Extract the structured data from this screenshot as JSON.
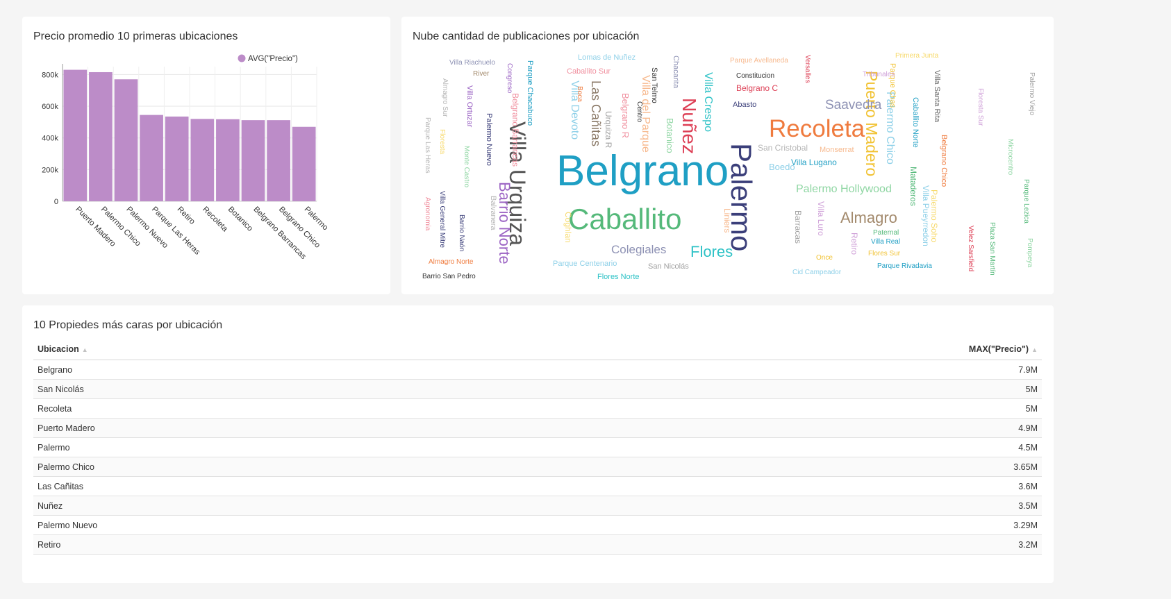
{
  "bar_card": {
    "title": "Precio promedio 10 primeras ubicaciones"
  },
  "cloud_card": {
    "title": "Nube cantidad de publicaciones por ubicación"
  },
  "table_card": {
    "title": "10 Propiedes más caras por ubicación",
    "columns": [
      {
        "label": "Ubicacion"
      },
      {
        "label": "MAX(\"Precio\")"
      }
    ],
    "rows": [
      {
        "ubicacion": "Belgrano",
        "max_precio": "7.9M",
        "value": 7900000
      },
      {
        "ubicacion": "San Nicolás",
        "max_precio": "5M",
        "value": 5000000
      },
      {
        "ubicacion": "Recoleta",
        "max_precio": "5M",
        "value": 5000000
      },
      {
        "ubicacion": "Puerto Madero",
        "max_precio": "4.9M",
        "value": 4900000
      },
      {
        "ubicacion": "Palermo",
        "max_precio": "4.5M",
        "value": 4500000
      },
      {
        "ubicacion": "Palermo Chico",
        "max_precio": "3.65M",
        "value": 3650000
      },
      {
        "ubicacion": "Las Cañitas",
        "max_precio": "3.6M",
        "value": 3600000
      },
      {
        "ubicacion": "Nuñez",
        "max_precio": "3.5M",
        "value": 3500000
      },
      {
        "ubicacion": "Palermo Nuevo",
        "max_precio": "3.29M",
        "value": 3290000
      },
      {
        "ubicacion": "Retiro",
        "max_precio": "3.2M",
        "value": 3200000
      }
    ],
    "bar_max": 7900000,
    "bar_color": "#cccccc"
  },
  "chart_data": [
    {
      "type": "bar",
      "title": "Precio promedio 10 primeras ubicaciones",
      "categories": [
        "Puerto Madero",
        "Palermo Chico",
        "Palermo Nuevo",
        "Parque Las Heras",
        "Retiro",
        "Recoleta",
        "Botanico",
        "Belgrano Barrancas",
        "Belgrano Chico",
        "Palermo"
      ],
      "series": [
        {
          "name": "AVG(\"Precio\")",
          "values": [
            830000,
            815000,
            770000,
            545000,
            535000,
            520000,
            518000,
            512000,
            512000,
            470000
          ],
          "color": "#bc8cc8"
        }
      ],
      "yticks": [
        "0",
        "200k",
        "400k",
        "600k",
        "800k"
      ],
      "ytick_values": [
        0,
        200000,
        400000,
        600000,
        800000
      ],
      "ylim": [
        0,
        850000
      ],
      "legend": "top-right",
      "grid": true
    },
    {
      "type": "wordcloud",
      "title": "Nube cantidad de publicaciones por ubicación",
      "words": [
        {
          "text": "Belgrano",
          "color": "#1f9fc4"
        },
        {
          "text": "Palermo",
          "color": "#3b3f7a"
        },
        {
          "text": "Caballito",
          "color": "#55b97a"
        },
        {
          "text": "Recoleta",
          "color": "#ef7b3e"
        },
        {
          "text": "Villa Urquiza",
          "color": "#555555"
        },
        {
          "text": "Nuñez",
          "color": "#dd3f55"
        },
        {
          "text": "Puerto Madero",
          "color": "#f1c232"
        },
        {
          "text": "Barrio Norte",
          "color": "#9c65c4"
        },
        {
          "text": "Almagro",
          "color": "#a38a6d"
        },
        {
          "text": "Flores",
          "color": "#2ec2c6"
        },
        {
          "text": "Saavedra",
          "color": "#8e92b4"
        },
        {
          "text": "Palermo Hollywood",
          "color": "#8fd6a3"
        },
        {
          "text": "Colegiales",
          "color": "#8e92b4"
        },
        {
          "text": "Las Cañitas",
          "color": "#8b7a68"
        },
        {
          "text": "Villa Devoto",
          "color": "#8ed0e8"
        },
        {
          "text": "Villa del Parque",
          "color": "#f7b98e"
        },
        {
          "text": "Villa Crespo",
          "color": "#2ec2c6"
        },
        {
          "text": "Palermo Chico",
          "color": "#8ed0e8"
        },
        {
          "text": "Belgrano R",
          "color": "#f0909f"
        },
        {
          "text": "Botanico",
          "color": "#8fd6a3"
        },
        {
          "text": "Urquiza R",
          "color": "#a0a0a0"
        },
        {
          "text": "San Telmo",
          "color": "#333333"
        },
        {
          "text": "Chacarita",
          "color": "#8e92b4"
        },
        {
          "text": "Villa Pueyrredon",
          "color": "#8ed0e8"
        },
        {
          "text": "Palermo Soho",
          "color": "#f7d96a"
        },
        {
          "text": "Mataderos",
          "color": "#55b97a"
        },
        {
          "text": "Belgrano Chico",
          "color": "#ef7b3e"
        },
        {
          "text": "Caballito Norte",
          "color": "#1f9fc4"
        },
        {
          "text": "Villa Santa Rita",
          "color": "#666666"
        },
        {
          "text": "Parque Chas",
          "color": "#f1c232"
        },
        {
          "text": "Lomas de Nuñez",
          "color": "#8ed0e8"
        },
        {
          "text": "Caballito Sur",
          "color": "#f0909f"
        },
        {
          "text": "Parque Avellaneda",
          "color": "#f7b98e"
        },
        {
          "text": "Versalles",
          "color": "#dd3f55"
        },
        {
          "text": "Primera Junta",
          "color": "#f7d96a"
        },
        {
          "text": "Tribunales",
          "color": "#cfa0d8"
        },
        {
          "text": "Constitucion",
          "color": "#333333"
        },
        {
          "text": "Belgrano C",
          "color": "#dd3f55"
        },
        {
          "text": "Abasto",
          "color": "#3b3f7a"
        },
        {
          "text": "San Cristobal",
          "color": "#b5b5b5"
        },
        {
          "text": "Monserrat",
          "color": "#f7b98e"
        },
        {
          "text": "Boedo",
          "color": "#8ed0e8"
        },
        {
          "text": "Villa Lugano",
          "color": "#1f9fc4"
        },
        {
          "text": "Villa Riachuelo",
          "color": "#8e92b4"
        },
        {
          "text": "River",
          "color": "#a38a6d"
        },
        {
          "text": "Congreso",
          "color": "#9c65c4"
        },
        {
          "text": "Parque Chacabuco",
          "color": "#1f9fc4"
        },
        {
          "text": "Boca",
          "color": "#ef7b3e"
        },
        {
          "text": "Centro",
          "color": "#333333"
        },
        {
          "text": "Almagro Sur",
          "color": "#b5b5b5"
        },
        {
          "text": "Villa Ortuzar",
          "color": "#9c65c4"
        },
        {
          "text": "Belgrano Barrancas",
          "color": "#f0909f"
        },
        {
          "text": "Palermo Nuevo",
          "color": "#3b3f7a"
        },
        {
          "text": "Parque Las Heras",
          "color": "#b5b5b5"
        },
        {
          "text": "Floresta",
          "color": "#f7d96a"
        },
        {
          "text": "Monte Castro",
          "color": "#8fd6a3"
        },
        {
          "text": "Agronomia",
          "color": "#f0909f"
        },
        {
          "text": "Villa General Mitre",
          "color": "#3b3f7a"
        },
        {
          "text": "Barrio Naón",
          "color": "#3b3f7a"
        },
        {
          "text": "Balvanera",
          "color": "#b5b5b5"
        },
        {
          "text": "Almagro Norte",
          "color": "#ef7b3e"
        },
        {
          "text": "Barrio San Pedro",
          "color": "#333333"
        },
        {
          "text": "Coghlan",
          "color": "#f7d96a"
        },
        {
          "text": "Parque Centenario",
          "color": "#8ed0e8"
        },
        {
          "text": "San Nicolás",
          "color": "#a0a0a0"
        },
        {
          "text": "Flores Norte",
          "color": "#2ec2c6"
        },
        {
          "text": "Liniers",
          "color": "#f7b98e"
        },
        {
          "text": "Barracas",
          "color": "#a0a0a0"
        },
        {
          "text": "Villa Luro",
          "color": "#cfa0d8"
        },
        {
          "text": "Retiro",
          "color": "#cfa0d8"
        },
        {
          "text": "Once",
          "color": "#f1c232"
        },
        {
          "text": "Cid Campeador",
          "color": "#8ed0e8"
        },
        {
          "text": "Paternal",
          "color": "#55b97a"
        },
        {
          "text": "Villa Real",
          "color": "#1f9fc4"
        },
        {
          "text": "Flores Sur",
          "color": "#f1c232"
        },
        {
          "text": "Parque Rivadavia",
          "color": "#1f9fc4"
        },
        {
          "text": "Velez Sarsfield",
          "color": "#dd3f55"
        },
        {
          "text": "Plaza San Martín",
          "color": "#55b97a"
        },
        {
          "text": "Parque Lezica",
          "color": "#55b97a"
        },
        {
          "text": "Pompeya",
          "color": "#8fd6a3"
        },
        {
          "text": "Microcentro",
          "color": "#8fd6a3"
        },
        {
          "text": "Floresta Sur",
          "color": "#cfa0d8"
        },
        {
          "text": "Palermo Viejo",
          "color": "#a0a0a0"
        }
      ]
    }
  ]
}
